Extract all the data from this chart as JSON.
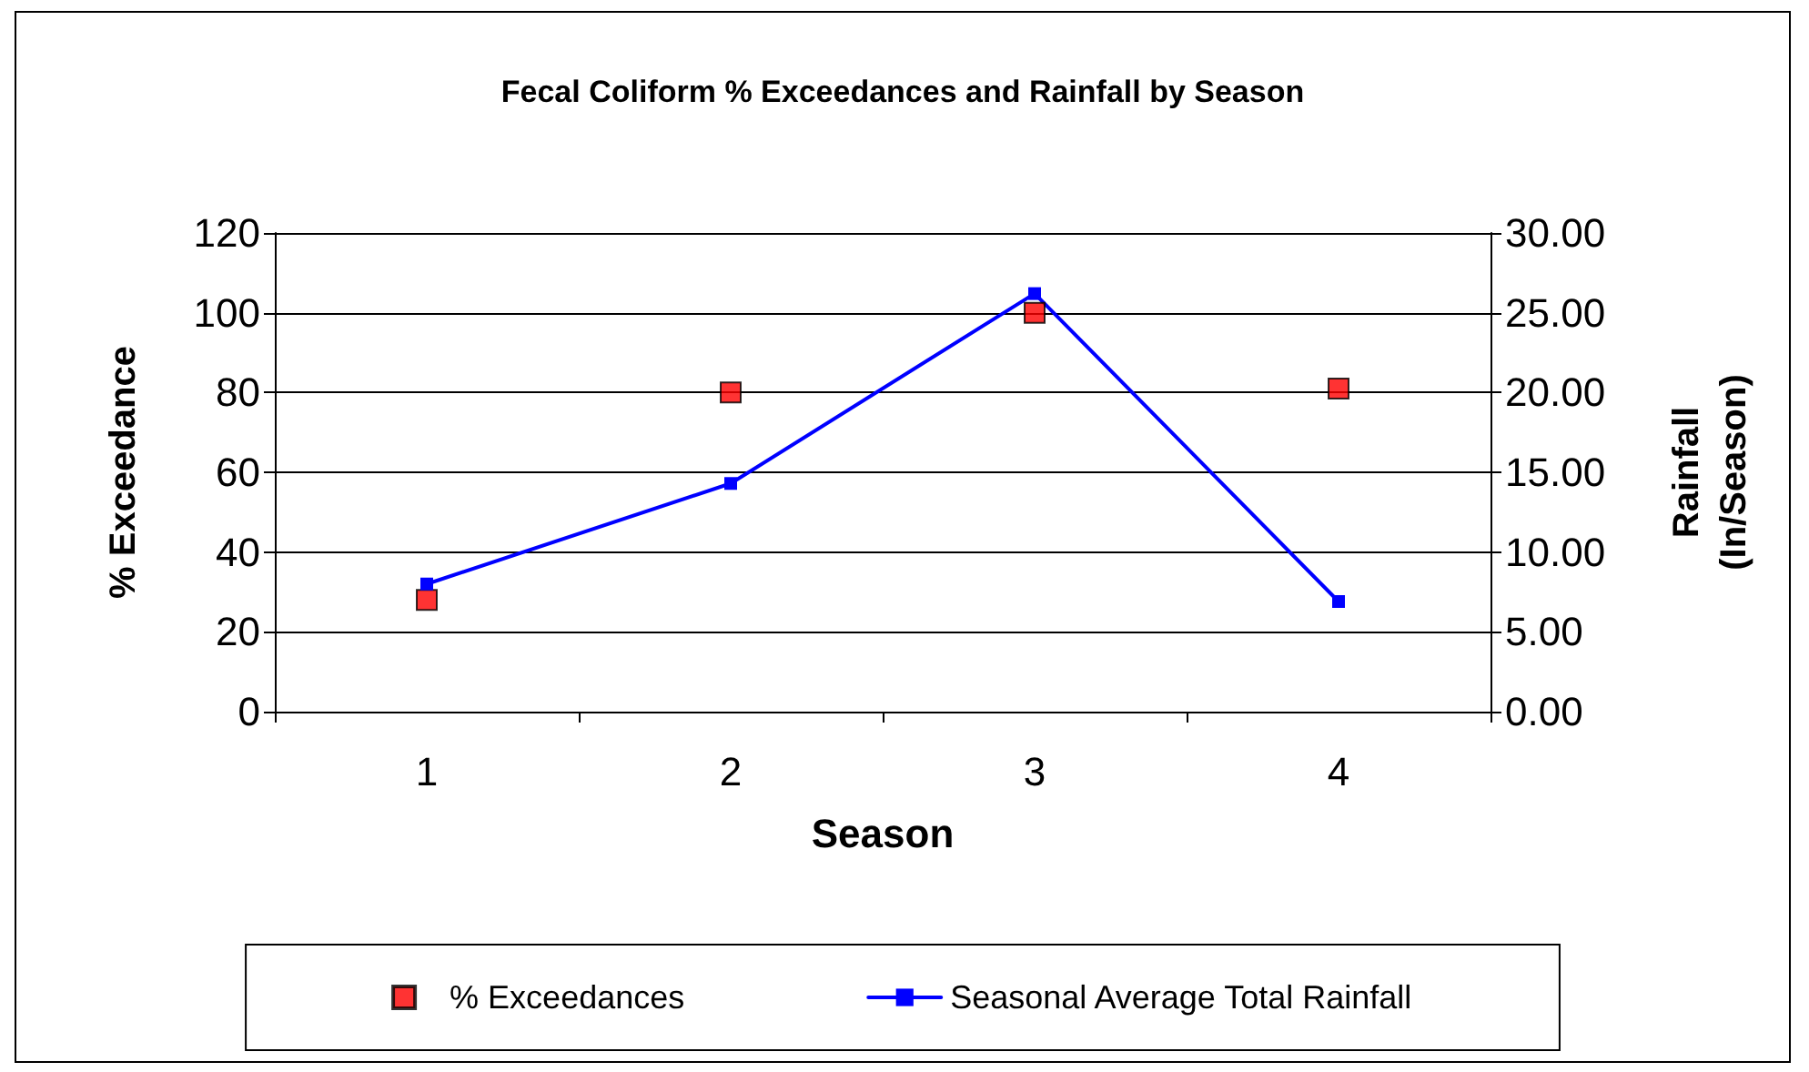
{
  "chart_data": {
    "type": "scatter",
    "title": "Fecal Coliform % Exceedances and Rainfall by Season",
    "xlabel": "Season",
    "ylabel": "% Exceedance",
    "y2label": "Rainfall\n(In/Season)",
    "categories": [
      "1",
      "2",
      "3",
      "4"
    ],
    "series": [
      {
        "name": "% Exceedances",
        "color": "#ff0000",
        "marker": "square",
        "values": [
          28,
          80,
          100,
          81
        ]
      },
      {
        "name": "Seasonal Average Total Rainfall",
        "type": "line",
        "axis": "y2",
        "color": "#0000ff",
        "marker": "square",
        "line_style": "solid",
        "values": [
          8.0,
          14.3,
          26.2,
          6.9
        ]
      }
    ],
    "ylim": [
      0,
      120
    ],
    "yticks": [
      0,
      20,
      40,
      60,
      80,
      100,
      120
    ],
    "y2lim": [
      0,
      30
    ],
    "y2ticks": [
      {
        "value": 0,
        "label": "0.00"
      },
      {
        "value": 5,
        "label": "5.00"
      },
      {
        "value": 10,
        "label": "10.00"
      },
      {
        "value": 15,
        "label": "15.00"
      },
      {
        "value": 20,
        "label": "20.00"
      },
      {
        "value": 25,
        "label": "25.00"
      },
      {
        "value": 30,
        "label": "30.00"
      }
    ],
    "grid": "y",
    "legend": "bottom"
  }
}
